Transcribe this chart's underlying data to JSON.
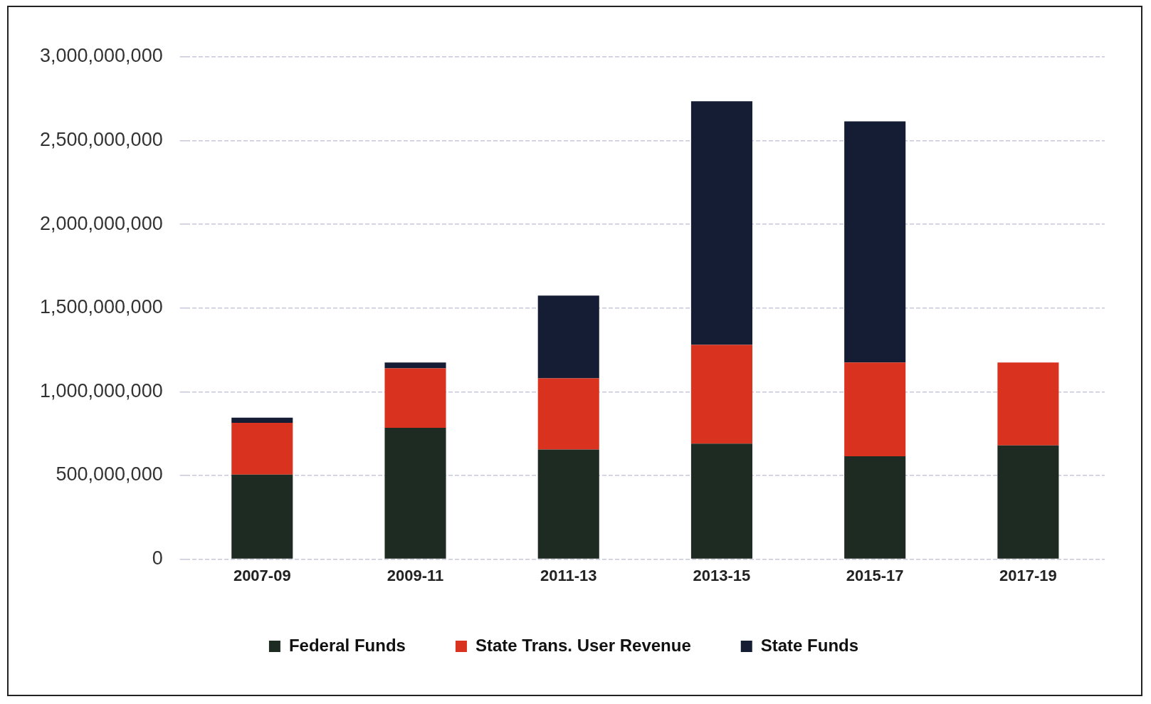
{
  "chart_data": {
    "type": "bar",
    "stacked": true,
    "categories": [
      "2007-09",
      "2009-11",
      "2011-13",
      "2013-15",
      "2015-17",
      "2017-19"
    ],
    "series": [
      {
        "name": "Federal Funds",
        "color": "#1e2b22",
        "values": [
          505000000,
          785000000,
          655000000,
          690000000,
          615000000,
          680000000
        ]
      },
      {
        "name": "State Trans. User Revenue",
        "color": "#d9331f",
        "values": [
          310000000,
          355000000,
          425000000,
          590000000,
          560000000,
          495000000
        ]
      },
      {
        "name": "State Funds",
        "color": "#141d33",
        "values": [
          30000000,
          35000000,
          495000000,
          1455000000,
          1440000000,
          0
        ]
      }
    ],
    "ylim": [
      0,
      3000000000
    ],
    "yticks": [
      {
        "value": 0,
        "label": "0"
      },
      {
        "value": 500000000,
        "label": "500,000,000"
      },
      {
        "value": 1000000000,
        "label": "1,000,000,000"
      },
      {
        "value": 1500000000,
        "label": "1,500,000,000"
      },
      {
        "value": 2000000000,
        "label": "2,000,000,000"
      },
      {
        "value": 2500000000,
        "label": "2,500,000,000"
      },
      {
        "value": 3000000000,
        "label": "3,000,000,000"
      }
    ],
    "grid": "y",
    "legend": "bottom"
  }
}
